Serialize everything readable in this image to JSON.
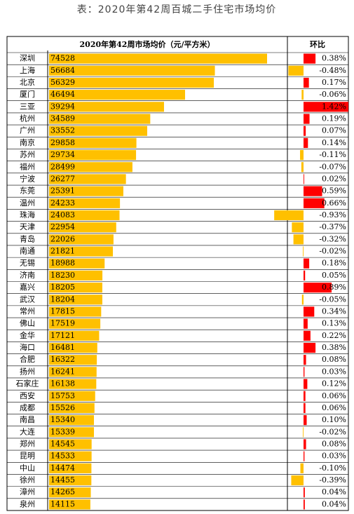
{
  "chart_data": {
    "type": "bar",
    "title": "表：2020年第42周百城二手住宅市场均价",
    "price_header": "2020年第42周市场均价（元/平方米）",
    "change_header": "环比",
    "categories": [
      "深圳",
      "上海",
      "北京",
      "厦门",
      "三亚",
      "杭州",
      "广州",
      "南京",
      "苏州",
      "福州",
      "宁波",
      "东莞",
      "温州",
      "珠海",
      "天津",
      "青岛",
      "南通",
      "无锡",
      "济南",
      "嘉兴",
      "武汉",
      "常州",
      "佛山",
      "金华",
      "海口",
      "合肥",
      "扬州",
      "石家庄",
      "西安",
      "成都",
      "南昌",
      "大连",
      "郑州",
      "昆明",
      "中山",
      "徐州",
      "漳州",
      "泉州"
    ],
    "series": [
      {
        "name": "均价",
        "color": "#ffc000",
        "values": [
          74528,
          56684,
          56329,
          46494,
          39294,
          34589,
          33552,
          29858,
          29734,
          28499,
          26277,
          25391,
          24233,
          24083,
          22954,
          22026,
          21821,
          18988,
          18230,
          18205,
          18204,
          17815,
          17519,
          17121,
          16481,
          16322,
          16241,
          16138,
          15753,
          15526,
          15340,
          15339,
          14545,
          14533,
          14474,
          14455,
          14265,
          14115
        ]
      },
      {
        "name": "环比",
        "color": "#ff0000",
        "negative_color": "#ffc000",
        "values": [
          0.38,
          -0.48,
          0.17,
          -0.06,
          1.42,
          0.19,
          0.07,
          0.14,
          -0.11,
          -0.07,
          0.02,
          0.59,
          0.66,
          -0.93,
          -0.37,
          -0.32,
          -0.02,
          0.18,
          0.05,
          0.89,
          -0.05,
          0.34,
          0.13,
          0.22,
          0.38,
          0.08,
          0.03,
          0.12,
          0.06,
          0.06,
          0.1,
          -0.02,
          0.08,
          0.03,
          -0.1,
          -0.39,
          0.04,
          0.04
        ],
        "value_labels": [
          "0.38%",
          "-0.48%",
          "0.17%",
          "-0.06%",
          "1.42%",
          "0.19%",
          "0.07%",
          "0.14%",
          "-0.11%",
          "-0.07%",
          "0.02%",
          "0.59%",
          "0.66%",
          "-0.93%",
          "-0.37%",
          "-0.32%",
          "-0.02%",
          "0.18%",
          "0.05%",
          "0.89%",
          "-0.05%",
          "0.34%",
          "0.13%",
          "0.22%",
          "0.38%",
          "0.08%",
          "0.03%",
          "0.12%",
          "0.06%",
          "0.06%",
          "0.10%",
          "-0.02%",
          "0.08%",
          "0.03%",
          "-0.10%",
          "-0.39%",
          "0.04%",
          "0.04%"
        ]
      }
    ]
  }
}
